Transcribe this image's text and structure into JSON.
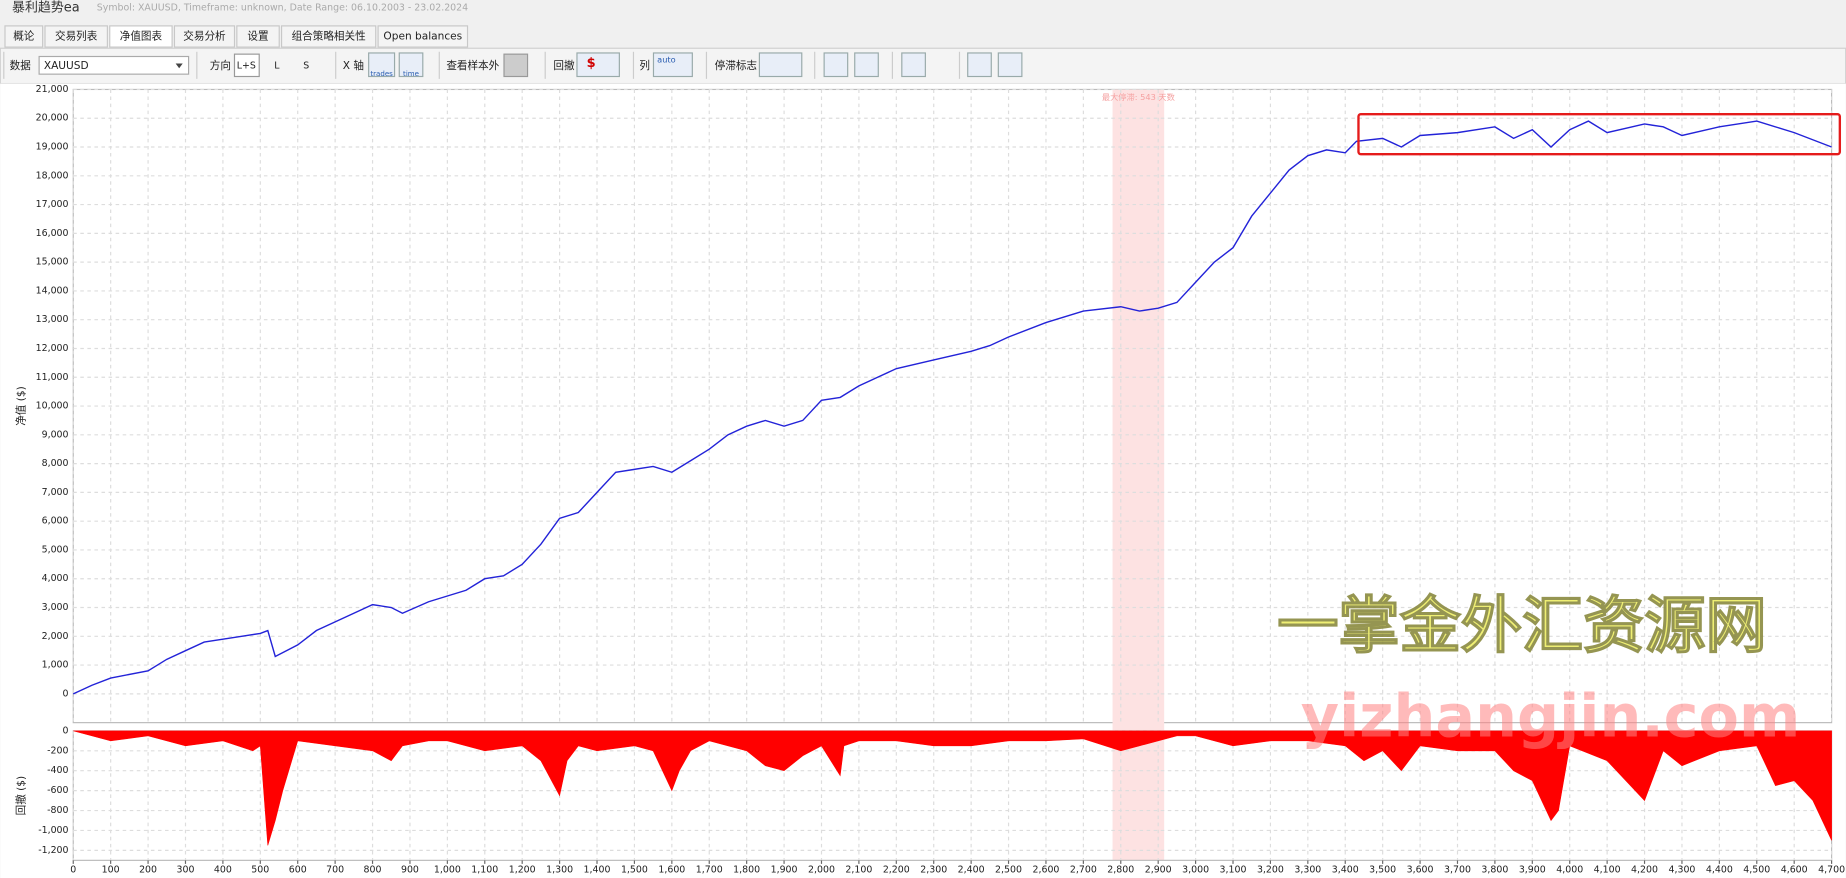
{
  "window_title": "暴利趋势ea",
  "window_subtitle": "Symbol: XAUUSD, Timeframe: unknown, Date Range: 06.10.2003 - 23.02.2024",
  "tabs": [
    "概论",
    "交易列表",
    "净值图表",
    "交易分析",
    "设置",
    "组合策略相关性",
    "Open balances"
  ],
  "toolbar": {
    "data_label": "数据",
    "symbol": "XAUUSD",
    "direction_label": "方向",
    "directions": [
      "L+S",
      "L",
      "S"
    ],
    "x_axis_label": "X 轴",
    "x_axis_options": [
      "trades",
      "time"
    ],
    "oos_label": "查看样本外",
    "drawdown_label": "回撤",
    "drawdown_option": "$",
    "column_label": "列",
    "column_option": "auto",
    "stagnation_label": "停滞标志"
  },
  "watermark": {
    "line1": "一掌金外汇资源网",
    "line2": "yizhangjin.com"
  },
  "chart_data": [
    {
      "type": "line",
      "ylabel": "净值 ($)",
      "color": "#2323d8",
      "grid": true,
      "xlim": [
        0,
        4700
      ],
      "ylim": [
        -1000,
        21000
      ],
      "yticks": [
        0,
        {
          "value": 1000,
          "label": "1,000"
        },
        {
          "value": 2000,
          "label": "2,000"
        },
        {
          "value": 3000,
          "label": "3,000"
        },
        {
          "value": 4000,
          "label": "4,000"
        },
        {
          "value": 5000,
          "label": "5,000"
        },
        {
          "value": 6000,
          "label": "6,000"
        },
        {
          "value": 7000,
          "label": "7,000"
        },
        {
          "value": 8000,
          "label": "8,000"
        },
        {
          "value": 9000,
          "label": "9,000"
        },
        {
          "value": 10000,
          "label": "10,000"
        },
        {
          "value": 11000,
          "label": "11,000"
        },
        {
          "value": 12000,
          "label": "12,000"
        },
        {
          "value": 13000,
          "label": "13,000"
        },
        {
          "value": 14000,
          "label": "14,000"
        },
        {
          "value": 15000,
          "label": "15,000"
        },
        {
          "value": 16000,
          "label": "16,000"
        },
        {
          "value": 17000,
          "label": "17,000"
        },
        {
          "value": 18000,
          "label": "18,000"
        },
        {
          "value": 19000,
          "label": "19,000"
        },
        {
          "value": 20000,
          "label": "20,000"
        },
        {
          "value": 21000,
          "label": "21,000"
        }
      ],
      "x": [
        0,
        50,
        100,
        200,
        250,
        300,
        350,
        400,
        450,
        500,
        520,
        540,
        600,
        650,
        700,
        750,
        800,
        850,
        880,
        950,
        1000,
        1050,
        1100,
        1150,
        1200,
        1250,
        1300,
        1350,
        1400,
        1450,
        1500,
        1550,
        1600,
        1650,
        1700,
        1750,
        1800,
        1850,
        1900,
        1950,
        2000,
        2050,
        2100,
        2150,
        2200,
        2300,
        2400,
        2450,
        2500,
        2600,
        2700,
        2800,
        2850,
        2900,
        2950,
        3000,
        3050,
        3100,
        3150,
        3200,
        3250,
        3300,
        3350,
        3400,
        3430,
        3500,
        3550,
        3600,
        3700,
        3800,
        3850,
        3900,
        3950,
        4000,
        4050,
        4100,
        4200,
        4250,
        4300,
        4400,
        4500,
        4600,
        4700
      ],
      "values": [
        0,
        300,
        550,
        800,
        1200,
        1500,
        1800,
        1900,
        2000,
        2100,
        2200,
        1300,
        1700,
        2200,
        2500,
        2800,
        3100,
        3000,
        2800,
        3200,
        3400,
        3600,
        4000,
        4100,
        4500,
        5200,
        6100,
        6300,
        7000,
        7700,
        7800,
        7900,
        7700,
        8100,
        8500,
        9000,
        9300,
        9500,
        9300,
        9500,
        10200,
        10300,
        10700,
        11000,
        11300,
        11600,
        11900,
        12100,
        12400,
        12900,
        13300,
        13450,
        13300,
        13400,
        13600,
        14300,
        15000,
        15500,
        16600,
        17400,
        18200,
        18700,
        18900,
        18800,
        19200,
        19300,
        19000,
        19400,
        19500,
        19700,
        19300,
        19600,
        19000,
        19600,
        19900,
        19500,
        19800,
        19700,
        19400,
        19700,
        19900,
        19500,
        19000
      ],
      "stagnation": {
        "label": "最大停滞: 543 天数",
        "start": 2778,
        "end": 2916,
        "color": "#fde2e2"
      }
    },
    {
      "type": "area",
      "ylabel": "回撤 ($)",
      "color": "#ff0000",
      "grid": true,
      "xlim": [
        0,
        4700
      ],
      "ylim": [
        -1300,
        0
      ],
      "yticks": [
        0,
        -200,
        -400,
        -600,
        -800,
        {
          "value": -1000,
          "label": "-1,000"
        },
        {
          "value": -1200,
          "label": "-1,200"
        }
      ],
      "xticks": [
        0,
        100,
        200,
        300,
        400,
        500,
        600,
        700,
        800,
        900,
        {
          "value": 1000,
          "label": "1,000"
        },
        {
          "value": 1100,
          "label": "1,100"
        },
        {
          "value": 1200,
          "label": "1,200"
        },
        {
          "value": 1300,
          "label": "1,300"
        },
        {
          "value": 1400,
          "label": "1,400"
        },
        {
          "value": 1500,
          "label": "1,500"
        },
        {
          "value": 1600,
          "label": "1,600"
        },
        {
          "value": 1700,
          "label": "1,700"
        },
        {
          "value": 1800,
          "label": "1,800"
        },
        {
          "value": 1900,
          "label": "1,900"
        },
        {
          "value": 2000,
          "label": "2,000"
        },
        {
          "value": 2100,
          "label": "2,100"
        },
        {
          "value": 2200,
          "label": "2,200"
        },
        {
          "value": 2300,
          "label": "2,300"
        },
        {
          "value": 2400,
          "label": "2,400"
        },
        {
          "value": 2500,
          "label": "2,500"
        },
        {
          "value": 2600,
          "label": "2,600"
        },
        {
          "value": 2700,
          "label": "2,700"
        },
        {
          "value": 2800,
          "label": "2,800"
        },
        {
          "value": 2900,
          "label": "2,900"
        },
        {
          "value": 3000,
          "label": "3,000"
        },
        {
          "value": 3100,
          "label": "3,100"
        },
        {
          "value": 3200,
          "label": "3,200"
        },
        {
          "value": 3300,
          "label": "3,300"
        },
        {
          "value": 3400,
          "label": "3,400"
        },
        {
          "value": 3500,
          "label": "3,500"
        },
        {
          "value": 3600,
          "label": "3,600"
        },
        {
          "value": 3700,
          "label": "3,700"
        },
        {
          "value": 3800,
          "label": "3,800"
        },
        {
          "value": 3900,
          "label": "3,900"
        },
        {
          "value": 4000,
          "label": "4,000"
        },
        {
          "value": 4100,
          "label": "4,100"
        },
        {
          "value": 4200,
          "label": "4,200"
        },
        {
          "value": 4300,
          "label": "4,300"
        },
        {
          "value": 4400,
          "label": "4,400"
        },
        {
          "value": 4500,
          "label": "4,500"
        },
        {
          "value": 4600,
          "label": "4,600"
        },
        {
          "value": 4700,
          "label": "4,700"
        }
      ],
      "x": [
        0,
        100,
        200,
        300,
        400,
        480,
        500,
        520,
        540,
        560,
        600,
        700,
        800,
        850,
        880,
        950,
        1000,
        1100,
        1200,
        1250,
        1300,
        1320,
        1350,
        1400,
        1500,
        1550,
        1600,
        1620,
        1650,
        1700,
        1800,
        1850,
        1900,
        1950,
        2000,
        2050,
        2060,
        2100,
        2200,
        2300,
        2400,
        2500,
        2600,
        2700,
        2800,
        2850,
        2900,
        2950,
        3000,
        3100,
        3200,
        3300,
        3400,
        3450,
        3500,
        3550,
        3600,
        3700,
        3800,
        3850,
        3900,
        3950,
        3970,
        4000,
        4100,
        4150,
        4200,
        4250,
        4300,
        4400,
        4500,
        4550,
        4600,
        4650,
        4700
      ],
      "values": [
        0,
        -100,
        -50,
        -150,
        -100,
        -200,
        -150,
        -1150,
        -900,
        -600,
        -100,
        -150,
        -200,
        -300,
        -150,
        -100,
        -100,
        -200,
        -150,
        -300,
        -650,
        -300,
        -150,
        -200,
        -150,
        -200,
        -600,
        -400,
        -200,
        -100,
        -200,
        -350,
        -400,
        -250,
        -150,
        -450,
        -150,
        -100,
        -100,
        -150,
        -150,
        -100,
        -100,
        -80,
        -200,
        -150,
        -100,
        -50,
        -50,
        -150,
        -100,
        -100,
        -150,
        -300,
        -200,
        -400,
        -150,
        -200,
        -200,
        -400,
        -500,
        -900,
        -800,
        -150,
        -300,
        -500,
        -700,
        -200,
        -350,
        -200,
        -150,
        -550,
        -500,
        -700,
        -1100
      ]
    }
  ]
}
